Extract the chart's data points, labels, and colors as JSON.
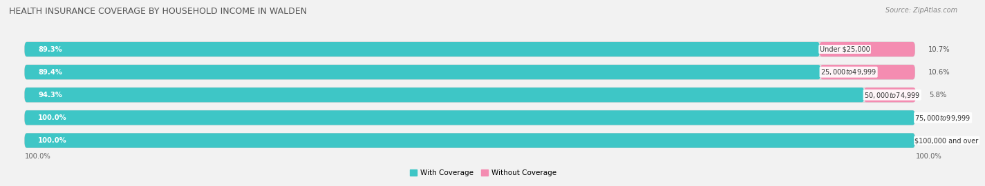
{
  "title": "HEALTH INSURANCE COVERAGE BY HOUSEHOLD INCOME IN WALDEN",
  "source": "Source: ZipAtlas.com",
  "categories": [
    "Under $25,000",
    "$25,000 to $49,999",
    "$50,000 to $74,999",
    "$75,000 to $99,999",
    "$100,000 and over"
  ],
  "with_coverage": [
    89.3,
    89.4,
    94.3,
    100.0,
    100.0
  ],
  "without_coverage": [
    10.7,
    10.6,
    5.8,
    0.0,
    0.0
  ],
  "color_with": "#3ec6c6",
  "color_without": "#f48cb1",
  "color_track": "#e2e2e2",
  "title_fontsize": 9,
  "label_fontsize": 7.2,
  "legend_fontsize": 7.5,
  "source_fontsize": 7,
  "bottom_label": "100.0%"
}
